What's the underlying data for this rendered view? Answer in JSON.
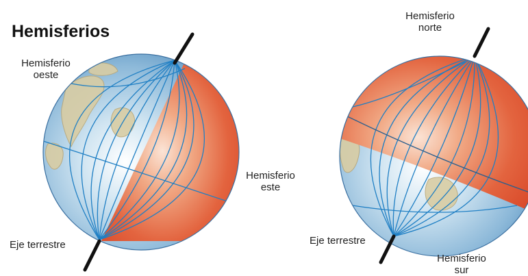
{
  "title": "Hemisferios",
  "globe_left": {
    "label_west_line1": "Hemisferio",
    "label_west_line2": "oeste",
    "label_east_line1": "Hemisferio",
    "label_east_line2": "este",
    "label_axis": "Eje terrestre"
  },
  "globe_right": {
    "label_north_line1": "Hemisferio",
    "label_north_line2": "norte",
    "label_south_line1": "Hemisferio",
    "label_south_line2": "sur",
    "label_axis": "Eje terrestre"
  },
  "colors": {
    "highlight_hemisphere": "#e2603e",
    "ocean": "#8ab8d8",
    "grid_lines": "#1f7fc4",
    "land": "#d7c9a0"
  }
}
